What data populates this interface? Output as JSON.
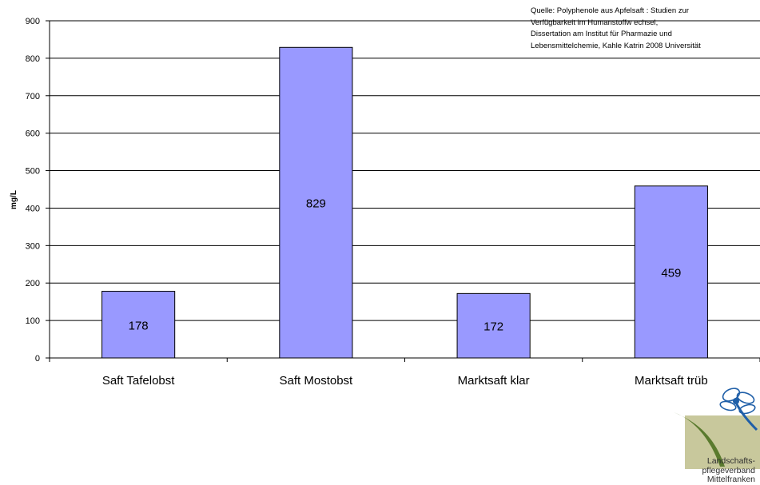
{
  "chart_data": {
    "type": "bar",
    "title": "",
    "xlabel": "",
    "ylabel": "mg/L",
    "ylim": [
      0,
      900
    ],
    "yticks": [
      0,
      100,
      200,
      300,
      400,
      500,
      600,
      700,
      800,
      900
    ],
    "grid": true,
    "categories": [
      "Saft Tafelobst",
      "Saft Mostobst",
      "Marktsaft klar",
      "Marktsaft trüb"
    ],
    "series": [
      {
        "values": [
          178,
          829,
          172,
          459
        ],
        "color": "#9999ff"
      }
    ],
    "data_labels": [
      "178",
      "829",
      "172",
      "459"
    ]
  },
  "source_note": [
    "Quelle: Polyphenole aus Apfelsaft : Studien zur",
    "Verfügbarkeit im Humanstoffw echsel,",
    "Dissertation am  Institut für Pharmazie und",
    "Lebensmittelchemie, Kahle Katrin 2008 Universität"
  ],
  "logo": {
    "lines": [
      "Landschafts-",
      "pflegeverband",
      "Mittelfranken"
    ],
    "colors": {
      "green": "#5a7a2e",
      "tan": "#c8c89c",
      "dragonfly": "#1f5fa8"
    }
  }
}
